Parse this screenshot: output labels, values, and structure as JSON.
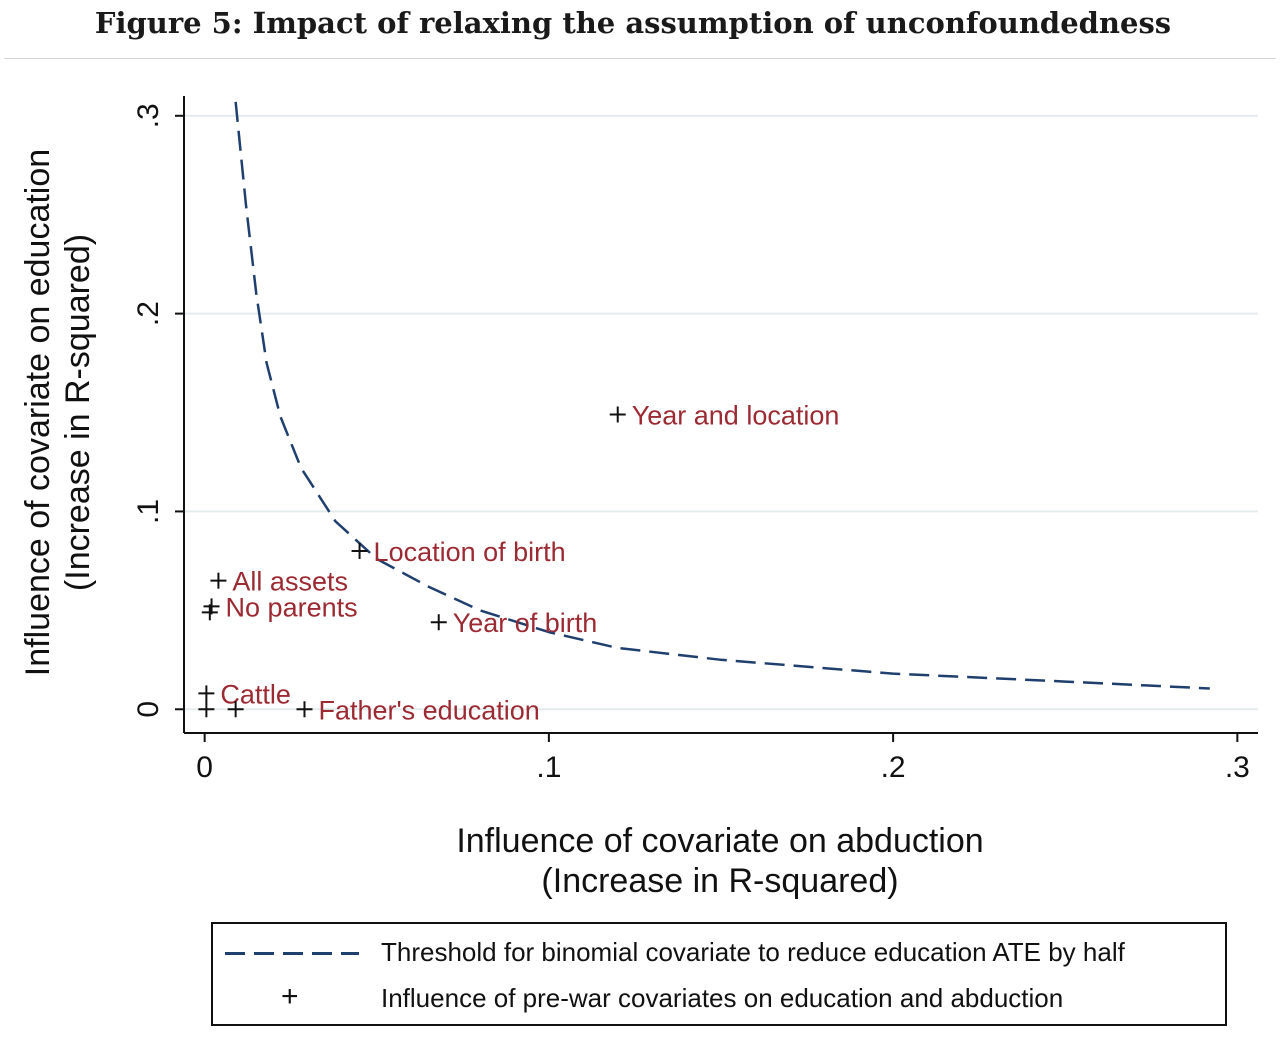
{
  "figure_title": "Figure 5: Impact of relaxing the assumption of unconfoundedness",
  "chart_data": {
    "type": "scatter",
    "xlabel": [
      "Influence of covariate on abduction",
      "(Increase in R-squared)"
    ],
    "ylabel": [
      "Influence of covariate on education",
      "(Increase in R-squared)"
    ],
    "xlim": [
      -0.006,
      0.306
    ],
    "ylim": [
      -0.012,
      0.31
    ],
    "x_ticks": [
      {
        "value": 0,
        "label": "0"
      },
      {
        "value": 0.1,
        "label": ".1"
      },
      {
        "value": 0.2,
        "label": ".2"
      },
      {
        "value": 0.3,
        "label": ".3"
      }
    ],
    "y_ticks": [
      {
        "value": 0,
        "label": "0"
      },
      {
        "value": 0.1,
        "label": ".1"
      },
      {
        "value": 0.2,
        "label": ".2"
      },
      {
        "value": 0.3,
        "label": ".3"
      }
    ],
    "grid": true,
    "series": [
      {
        "name": "Threshold for binomial covariate to reduce education ATE by half",
        "style": "dashed-line",
        "color": "#1f3f6e",
        "x": [
          0.009,
          0.012,
          0.015,
          0.018,
          0.022,
          0.028,
          0.038,
          0.05,
          0.065,
          0.08,
          0.1,
          0.12,
          0.15,
          0.2,
          0.25,
          0.292
        ],
        "y": [
          0.307,
          0.255,
          0.21,
          0.175,
          0.148,
          0.122,
          0.095,
          0.076,
          0.062,
          0.05,
          0.039,
          0.031,
          0.025,
          0.018,
          0.014,
          0.0105
        ]
      },
      {
        "name": "Influence of pre-war covariates on education and abduction",
        "style": "plus-markers",
        "color": "#111111",
        "points": [
          {
            "label": "Year and location",
            "x": 0.12,
            "y": 0.149
          },
          {
            "label": "Location of birth",
            "x": 0.045,
            "y": 0.08
          },
          {
            "label": "All assets",
            "x": 0.004,
            "y": 0.065
          },
          {
            "label": "No parents",
            "x": 0.002,
            "y": 0.052
          },
          {
            "label": "",
            "x": 0.0015,
            "y": 0.049
          },
          {
            "label": "Year of birth",
            "x": 0.068,
            "y": 0.044
          },
          {
            "label": "Cattle",
            "x": 0.0005,
            "y": 0.008
          },
          {
            "label": "",
            "x": 0.0005,
            "y": 0.0
          },
          {
            "label": "",
            "x": 0.009,
            "y": 0.0
          },
          {
            "label": "Father's education",
            "x": 0.029,
            "y": 0.0
          }
        ]
      }
    ],
    "annotation_color": "#9c2a33",
    "legend_position": "bottom"
  }
}
